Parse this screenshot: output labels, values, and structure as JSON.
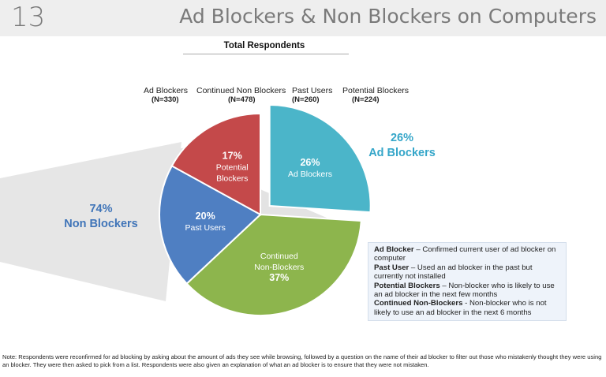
{
  "header": {
    "slide_number": "13",
    "title": "Ad Blockers & Non Blockers on Computers"
  },
  "chart_data": {
    "type": "pie",
    "title": "Total Respondents",
    "series": [
      {
        "name": "Ad Blockers",
        "n_label": "(N=330)",
        "pct": 26,
        "pct_label": "26%",
        "slice_label": [
          "Ad Blockers"
        ],
        "color": "#4bb5c9",
        "exploded": true
      },
      {
        "name": "Continued Non Blockers",
        "n_label": "(N=478)",
        "pct": 37,
        "pct_label": "37%",
        "slice_label": [
          "Continued",
          "Non-Blockers"
        ],
        "color": "#8db54d"
      },
      {
        "name": "Past Users",
        "n_label": "(N=260)",
        "pct": 20,
        "pct_label": "20%",
        "slice_label": [
          "Past Users"
        ],
        "color": "#4f7fc2"
      },
      {
        "name": "Potential Blockers",
        "n_label": "(N=224)",
        "pct": 17,
        "pct_label": "17%",
        "slice_label": [
          "Potential",
          "Blockers"
        ],
        "color": "#c4494a"
      }
    ],
    "group_labels": {
      "non_blockers": {
        "pct": "74%",
        "label": "Non Blockers",
        "color": "#3f74b8"
      },
      "ad_blockers": {
        "pct": "26%",
        "label": "Ad Blockers",
        "color": "#35a6c9"
      }
    }
  },
  "definitions": [
    {
      "term": "Ad Blocker",
      "text": " – Confirmed current user of ad blocker on computer"
    },
    {
      "term": "Past User",
      "text": " –  Used an ad blocker in the past but currently not installed"
    },
    {
      "term": "Potential Blockers",
      "text": " – Non-blocker who is likely to use an ad blocker in the next few months"
    },
    {
      "term": "Continued Non-Blockers",
      "text": " - Non-blocker who is not likely to use an ad blocker in the next 6 months"
    }
  ],
  "footnote": "Note:  Respondents were reconfirmed for ad blocking by asking about the amount of ads they see while browsing, followed by a question on the name of their ad blocker to filter out those who mistakenly thought they were using an blocker. They were then asked to pick from a list. Respondents were also given an explanation of what an ad blocker is  to ensure that they were not mistaken."
}
